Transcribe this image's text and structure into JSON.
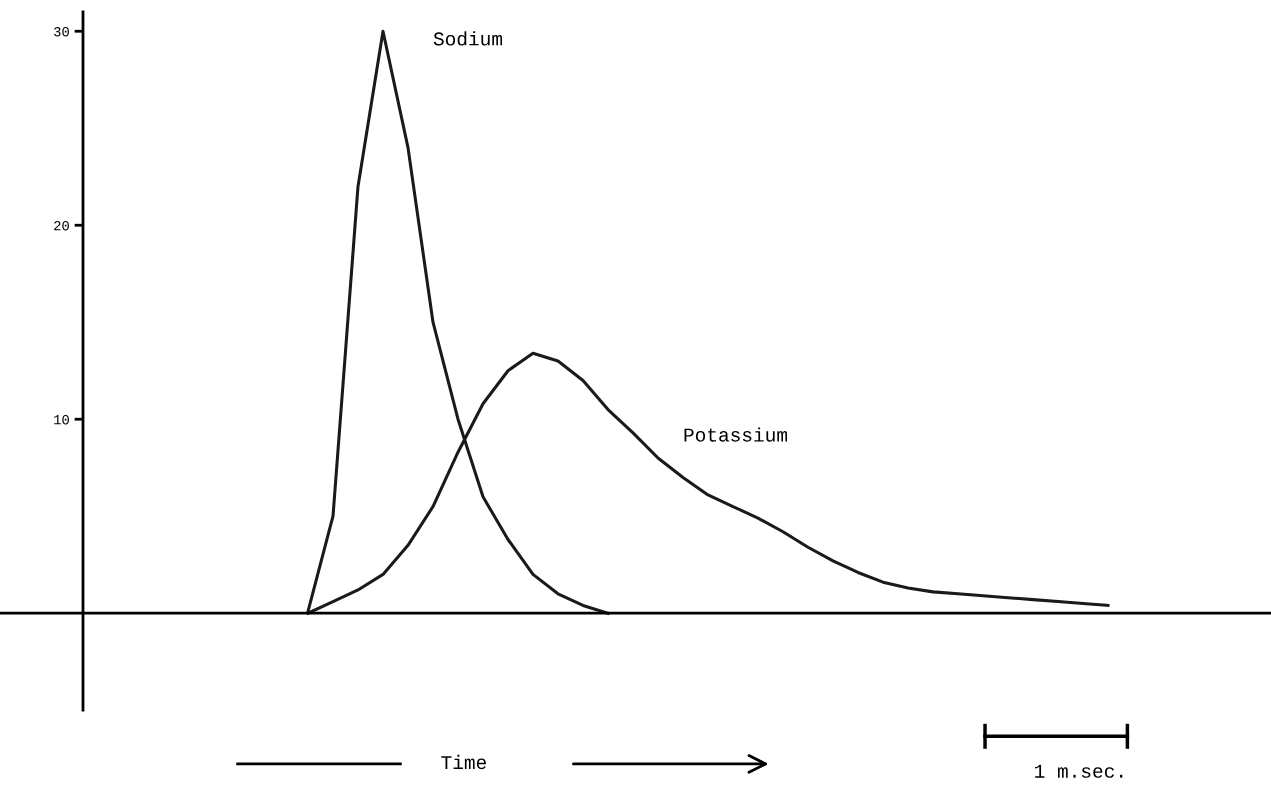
{
  "chart_data": {
    "type": "line",
    "categories": [
      null,
      null,
      null,
      null,
      null,
      null,
      null,
      null,
      null,
      null,
      null,
      null,
      null,
      null,
      null,
      null,
      null,
      null,
      null,
      null,
      null,
      null,
      null,
      null,
      null,
      null,
      null,
      null,
      null,
      null,
      null,
      null,
      null,
      null,
      null,
      null,
      null,
      null,
      null,
      null,
      null,
      null,
      null,
      null,
      null,
      null,
      null,
      null
    ],
    "series": [
      {
        "name": "Sodium",
        "color": "#1a1a1a",
        "values": [
          null,
          null,
          null,
          null,
          null,
          null,
          null,
          null,
          null,
          0.1,
          5,
          22,
          30,
          24,
          15,
          10,
          6,
          3.8,
          2,
          1,
          0.4,
          0,
          null,
          null,
          null,
          null,
          null,
          null,
          null,
          null,
          null,
          null,
          null,
          null,
          null,
          null,
          null,
          null,
          null,
          null,
          null,
          null,
          null,
          null,
          null,
          null,
          null,
          null
        ]
      },
      {
        "name": "Potassium",
        "color": "#1a1a1a",
        "values": [
          null,
          null,
          null,
          null,
          null,
          null,
          null,
          null,
          null,
          0,
          0.6,
          1.2,
          2,
          3.5,
          5.5,
          8.3,
          10.8,
          12.5,
          13.4,
          13,
          12,
          10.5,
          9.3,
          8,
          7,
          6.1,
          5.5,
          4.9,
          4.2,
          3.4,
          2.7,
          2.1,
          1.6,
          1.3,
          1.1,
          1,
          0.9,
          0.8,
          0.7,
          0.6,
          0.5,
          0.4,
          null,
          null,
          null,
          null,
          null,
          null
        ]
      }
    ],
    "ylim": [
      -5,
      31
    ],
    "yticks": [
      10,
      20,
      30
    ],
    "tick_labels": "y",
    "grid": false,
    "legend": false,
    "annotations": [
      "Time",
      "1 m.sec."
    ]
  }
}
